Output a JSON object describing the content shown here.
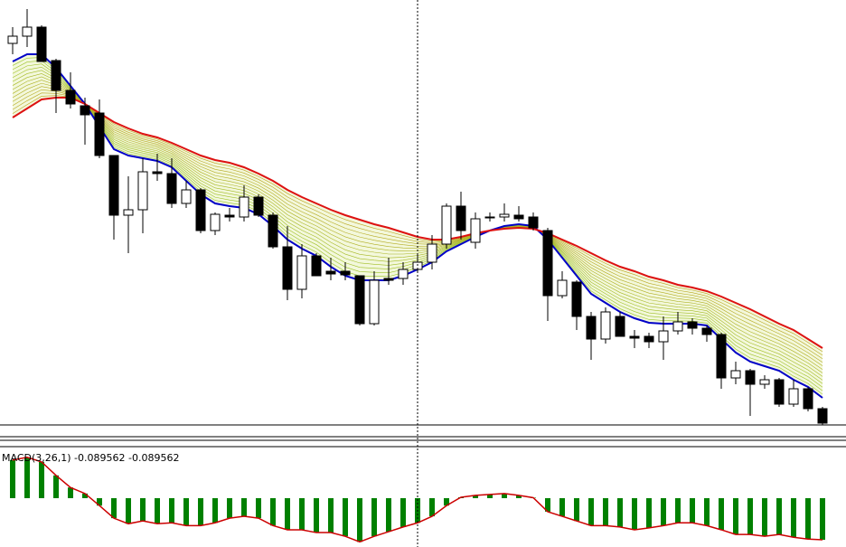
{
  "chart_data": [
    {
      "type": "candlestick",
      "ylim": [
        0,
        470
      ],
      "open": [
        422,
        430,
        440,
        403,
        370,
        353,
        345,
        298,
        232,
        238,
        280,
        278,
        245,
        260,
        215,
        232,
        230,
        252,
        232,
        197,
        150,
        187,
        170,
        170,
        165,
        112,
        162,
        162,
        172,
        180,
        200,
        242,
        202,
        230,
        230,
        232,
        230,
        215,
        143,
        158,
        120,
        95,
        120,
        98,
        98,
        92,
        104,
        114,
        107,
        100,
        52,
        60,
        45,
        50,
        23,
        40,
        18
      ],
      "high": [
        440,
        460,
        442,
        405,
        390,
        362,
        360,
        298,
        275,
        295,
        300,
        295,
        270,
        262,
        235,
        240,
        265,
        255,
        235,
        220,
        200,
        190,
        185,
        180,
        165,
        170,
        185,
        180,
        190,
        210,
        245,
        258,
        235,
        235,
        245,
        242,
        235,
        218,
        170,
        160,
        125,
        130,
        125,
        105,
        102,
        120,
        125,
        118,
        110,
        102,
        70,
        62,
        55,
        52,
        50,
        42,
        20
      ],
      "low": [
        410,
        418,
        402,
        345,
        350,
        310,
        295,
        205,
        190,
        212,
        270,
        240,
        240,
        212,
        210,
        225,
        225,
        230,
        195,
        138,
        140,
        165,
        160,
        160,
        110,
        110,
        155,
        155,
        170,
        172,
        195,
        205,
        195,
        225,
        225,
        225,
        215,
        115,
        140,
        105,
        72,
        90,
        98,
        85,
        85,
        72,
        100,
        100,
        92,
        40,
        45,
        10,
        40,
        20,
        20,
        15,
        0
      ],
      "close": [
        430,
        440,
        402,
        370,
        355,
        343,
        298,
        232,
        238,
        280,
        278,
        245,
        260,
        215,
        233,
        230,
        252,
        232,
        197,
        150,
        187,
        165,
        167,
        166,
        112,
        160,
        160,
        172,
        180,
        200,
        242,
        215,
        228,
        230,
        233,
        228,
        218,
        143,
        160,
        120,
        95,
        125,
        98,
        96,
        92,
        104,
        114,
        107,
        100,
        52,
        60,
        45,
        50,
        23,
        40,
        18,
        2
      ],
      "up_color": "#ffffff",
      "down_color": "#000000",
      "series": [
        {
          "color": "#0000c8",
          "values": [
            402,
            410,
            410,
            395,
            375,
            355,
            330,
            305,
            298,
            295,
            292,
            285,
            270,
            255,
            245,
            242,
            240,
            233,
            220,
            205,
            195,
            187,
            175,
            165,
            160,
            160,
            160,
            165,
            172,
            180,
            192,
            200,
            208,
            215,
            220,
            222,
            220,
            205,
            185,
            165,
            145,
            135,
            125,
            118,
            113,
            112,
            112,
            112,
            110,
            95,
            80,
            70,
            65,
            60,
            50,
            42,
            30
          ]
        },
        {
          "color": "#dd1111",
          "values": [
            340,
            350,
            360,
            362,
            362,
            355,
            345,
            335,
            328,
            322,
            318,
            312,
            305,
            298,
            293,
            290,
            285,
            278,
            270,
            260,
            252,
            245,
            238,
            232,
            227,
            222,
            218,
            213,
            208,
            205,
            205,
            208,
            212,
            215,
            217,
            218,
            217,
            212,
            205,
            198,
            190,
            182,
            175,
            170,
            164,
            160,
            155,
            152,
            148,
            142,
            135,
            128,
            120,
            112,
            105,
            95,
            85
          ]
        }
      ]
    },
    {
      "type": "bar",
      "title": "MACD(3,26,1) -0.089562 -0.089562",
      "ylim": [
        -0.105,
        0.105
      ],
      "color": "#008000",
      "line_color": "#cc0000",
      "values": [
        0.082,
        0.088,
        0.078,
        0.049,
        0.023,
        0.01,
        -0.016,
        -0.043,
        -0.055,
        -0.049,
        -0.055,
        -0.053,
        -0.059,
        -0.059,
        -0.053,
        -0.043,
        -0.039,
        -0.043,
        -0.059,
        -0.068,
        -0.068,
        -0.074,
        -0.074,
        -0.082,
        -0.094,
        -0.082,
        -0.072,
        -0.062,
        -0.053,
        -0.039,
        -0.016,
        0.002,
        0.006,
        0.008,
        0.01,
        0.006,
        0.001,
        -0.029,
        -0.039,
        -0.049,
        -0.059,
        -0.059,
        -0.062,
        -0.068,
        -0.064,
        -0.059,
        -0.053,
        -0.053,
        -0.059,
        -0.068,
        -0.078,
        -0.078,
        -0.082,
        -0.078,
        -0.084,
        -0.088,
        -0.089562
      ]
    }
  ]
}
